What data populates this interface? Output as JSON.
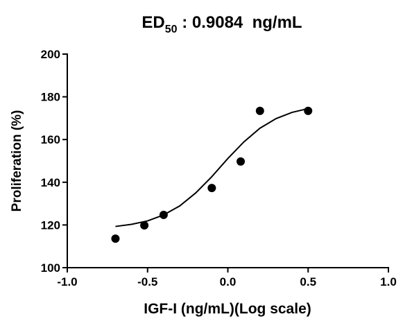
{
  "chart_data": {
    "type": "scatter",
    "title": {
      "text": "ED",
      "subscript": "50",
      "suffix": " : 0.9084  ng/mL"
    },
    "x_label": "IGF-I (ng/mL)(Log scale)",
    "y_label": "Proliferation (%)",
    "xlim": [
      -1,
      1
    ],
    "xticks": [
      {
        "value": -1,
        "label": "-1.0"
      },
      {
        "value": -0.5,
        "label": "-0.5"
      },
      {
        "value": 0,
        "label": "0.0"
      },
      {
        "value": 0.5,
        "label": "0.5"
      },
      {
        "value": 1,
        "label": "1.0"
      }
    ],
    "ylim": [
      100,
      200
    ],
    "yticks": [
      100,
      120,
      140,
      160,
      180,
      200
    ],
    "series": [
      {
        "mode": "markers",
        "color": "#000000",
        "x": [
          -0.7,
          -0.52,
          -0.4,
          -0.1,
          0.08,
          0.2,
          0.5
        ],
        "values": [
          113.6,
          119.8,
          124.7,
          137.3,
          149.7,
          173.4,
          173.4
        ]
      },
      {
        "mode": "line",
        "color": "#000000",
        "x": [
          -0.7,
          -0.6,
          -0.5,
          -0.4,
          -0.3,
          -0.2,
          -0.1,
          0.0,
          0.1,
          0.2,
          0.3,
          0.4,
          0.5
        ],
        "values": [
          119.3,
          120.3,
          121.9,
          124.7,
          128.9,
          135.0,
          142.6,
          151.1,
          158.9,
          165.3,
          169.8,
          172.7,
          174.5
        ]
      }
    ]
  }
}
